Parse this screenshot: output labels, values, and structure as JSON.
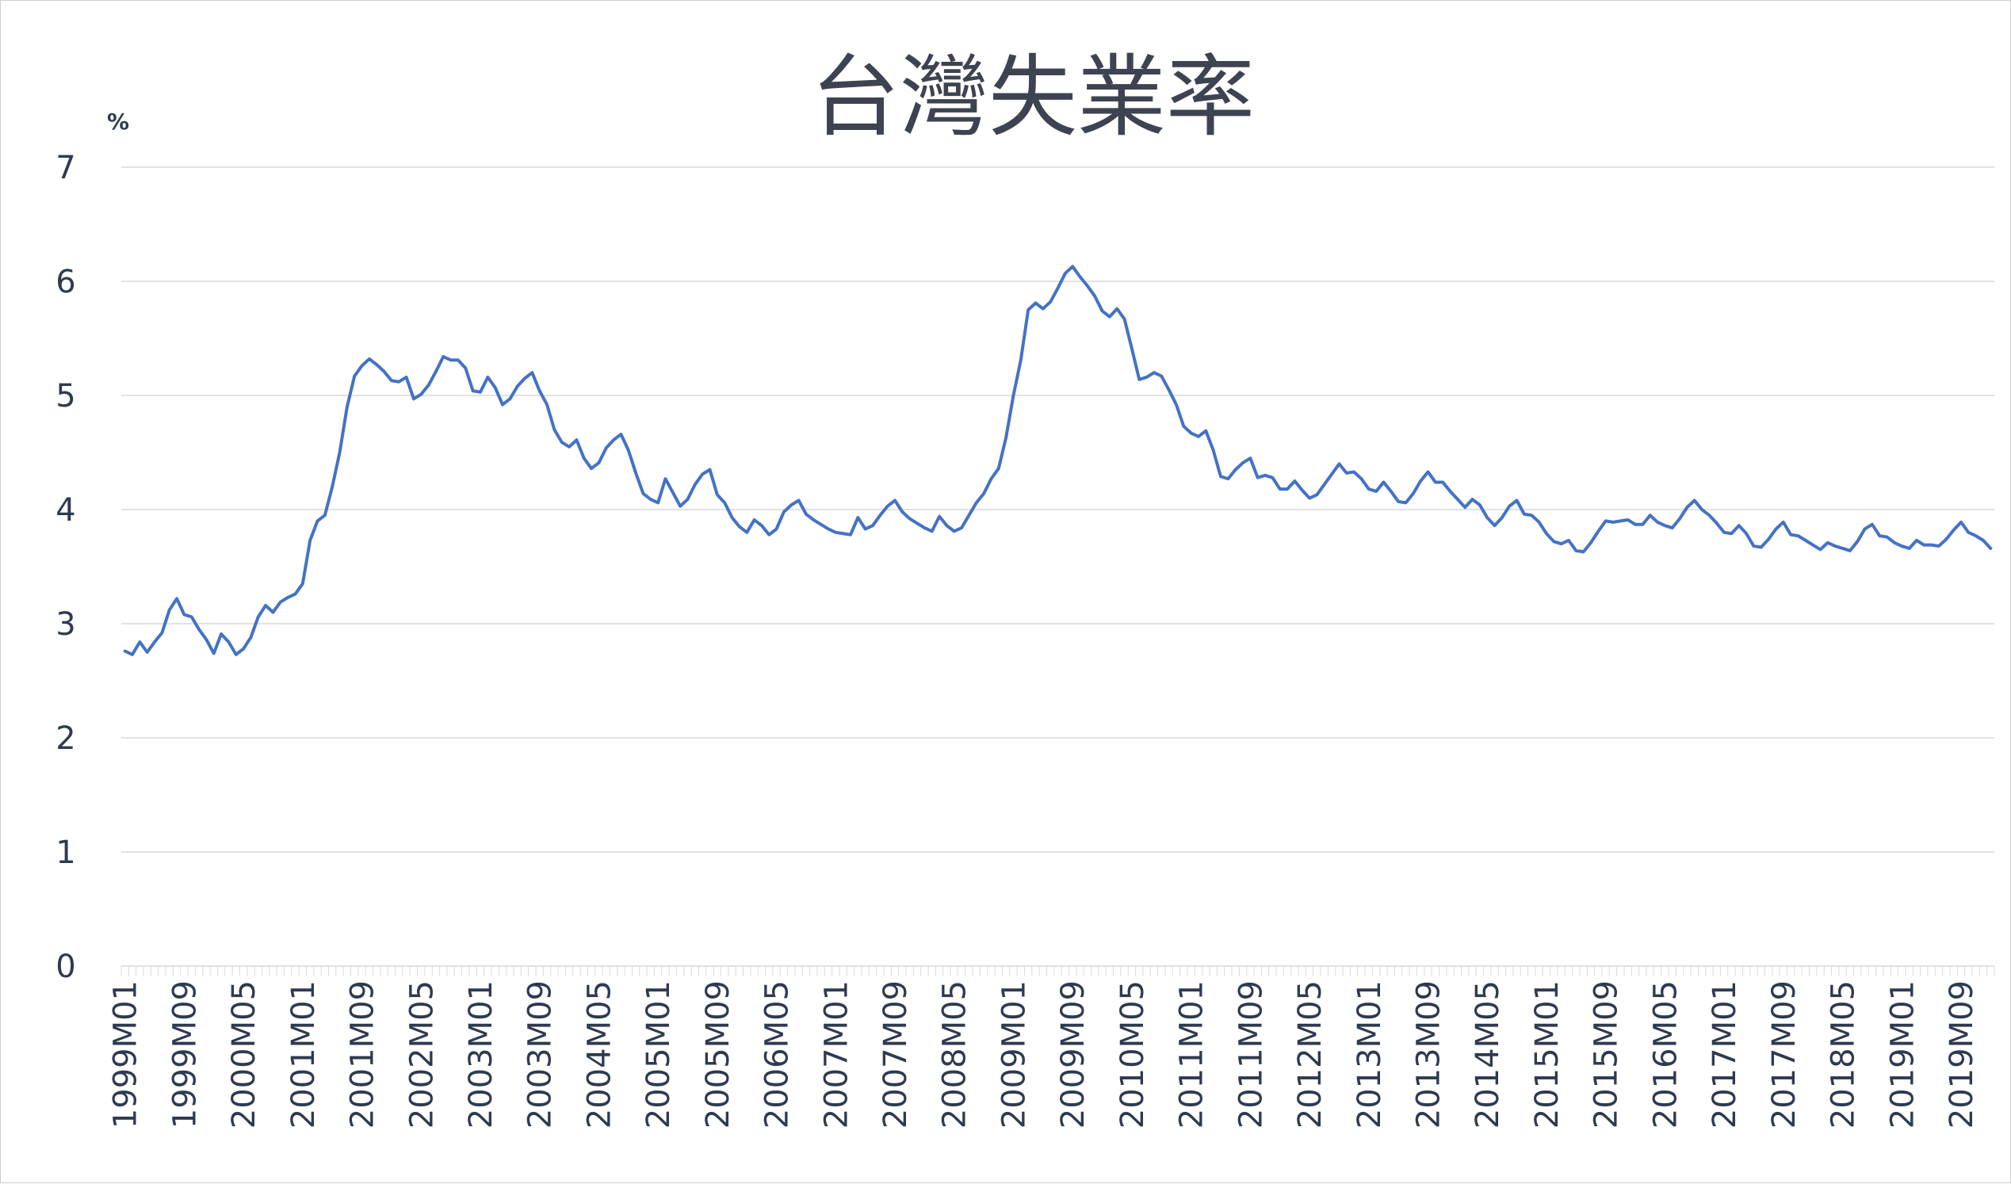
{
  "chart_data": {
    "type": "line",
    "title": "台灣失業率",
    "ylabel": "%",
    "xlabel": "",
    "ylim": [
      0,
      7
    ],
    "yticks": [
      "0",
      "1",
      "2",
      "3",
      "4",
      "5",
      "6",
      "7"
    ],
    "grid": true,
    "legend": "none",
    "line_color": "#4472c4",
    "x_start": "1999M01",
    "x_end": "2019M12",
    "x_tick_labels": [
      "1999M01",
      "1999M09",
      "2000M05",
      "2001M01",
      "2001M09",
      "2002M05",
      "2003M01",
      "2003M09",
      "2004M05",
      "2005M01",
      "2005M09",
      "2006M05",
      "2007M01",
      "2007M09",
      "2008M05",
      "2009M01",
      "2009M09",
      "2010M05",
      "2011M01",
      "2011M09",
      "2012M05",
      "2013M01",
      "2013M09",
      "2014M05",
      "2015M01",
      "2015M09",
      "2016M05",
      "2017M01",
      "2017M09",
      "2018M05",
      "2019M01",
      "2019M09"
    ],
    "series": [
      {
        "values": [
          2.76,
          2.73,
          2.84,
          2.75,
          2.84,
          2.92,
          3.12,
          3.22,
          3.08,
          3.06,
          2.95,
          2.86,
          2.74,
          2.91,
          2.84,
          2.73,
          2.78,
          2.88,
          3.06,
          3.16,
          3.1,
          3.19,
          3.23,
          3.26,
          3.35,
          3.73,
          3.9,
          3.95,
          4.2,
          4.5,
          4.9,
          5.17,
          5.26,
          5.32,
          5.27,
          5.21,
          5.13,
          5.12,
          5.16,
          4.97,
          5.01,
          5.09,
          5.21,
          5.34,
          5.31,
          5.31,
          5.24,
          5.04,
          5.03,
          5.16,
          5.07,
          4.92,
          4.97,
          5.08,
          5.15,
          5.2,
          5.04,
          4.92,
          4.7,
          4.59,
          4.55,
          4.61,
          4.45,
          4.36,
          4.41,
          4.54,
          4.61,
          4.66,
          4.52,
          4.32,
          4.14,
          4.09,
          4.06,
          4.27,
          4.15,
          4.03,
          4.09,
          4.22,
          4.31,
          4.35,
          4.13,
          4.06,
          3.93,
          3.85,
          3.8,
          3.91,
          3.86,
          3.78,
          3.83,
          3.98,
          4.04,
          4.08,
          3.96,
          3.91,
          3.87,
          3.83,
          3.8,
          3.79,
          3.78,
          3.93,
          3.83,
          3.86,
          3.95,
          4.03,
          4.08,
          3.98,
          3.92,
          3.88,
          3.84,
          3.81,
          3.94,
          3.86,
          3.81,
          3.84,
          3.95,
          4.06,
          4.14,
          4.27,
          4.36,
          4.63,
          5.0,
          5.31,
          5.75,
          5.81,
          5.76,
          5.82,
          5.94,
          6.07,
          6.13,
          6.04,
          5.96,
          5.87,
          5.74,
          5.69,
          5.76,
          5.67,
          5.41,
          5.14,
          5.16,
          5.2,
          5.17,
          5.05,
          4.92,
          4.73,
          4.67,
          4.64,
          4.69,
          4.52,
          4.29,
          4.27,
          4.35,
          4.41,
          4.45,
          4.28,
          4.3,
          4.28,
          4.18,
          4.18,
          4.25,
          4.17,
          4.1,
          4.13,
          4.22,
          4.31,
          4.4,
          4.32,
          4.33,
          4.27,
          4.18,
          4.16,
          4.24,
          4.16,
          4.07,
          4.06,
          4.14,
          4.25,
          4.33,
          4.24,
          4.24,
          4.16,
          4.09,
          4.02,
          4.09,
          4.04,
          3.93,
          3.86,
          3.93,
          4.03,
          4.08,
          3.96,
          3.95,
          3.89,
          3.79,
          3.72,
          3.7,
          3.73,
          3.64,
          3.63,
          3.71,
          3.81,
          3.9,
          3.89,
          3.9,
          3.91,
          3.87,
          3.87,
          3.95,
          3.89,
          3.86,
          3.84,
          3.92,
          4.02,
          4.08,
          4.0,
          3.95,
          3.88,
          3.8,
          3.79,
          3.86,
          3.79,
          3.68,
          3.67,
          3.74,
          3.83,
          3.89,
          3.78,
          3.77,
          3.73,
          3.69,
          3.65,
          3.71,
          3.68,
          3.66,
          3.64,
          3.72,
          3.83,
          3.87,
          3.77,
          3.76,
          3.71,
          3.68,
          3.66,
          3.73,
          3.69,
          3.69,
          3.68,
          3.74,
          3.82,
          3.89,
          3.8,
          3.77,
          3.73,
          3.66
        ]
      }
    ]
  }
}
